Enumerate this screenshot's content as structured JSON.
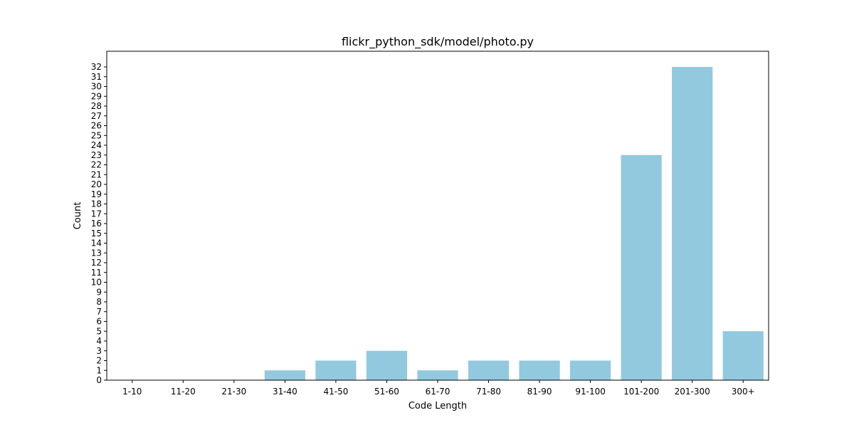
{
  "chart_data": {
    "type": "bar",
    "title": "flickr_python_sdk/model/photo.py",
    "xlabel": "Code Length",
    "ylabel": "Count",
    "categories": [
      "1-10",
      "11-20",
      "21-30",
      "31-40",
      "41-50",
      "51-60",
      "61-70",
      "71-80",
      "81-90",
      "91-100",
      "101-200",
      "201-300",
      "300+"
    ],
    "values": [
      0,
      0,
      0,
      1,
      2,
      3,
      1,
      2,
      2,
      2,
      23,
      32,
      5
    ],
    "ylim": [
      0,
      33.6
    ],
    "yticks": [
      0,
      1,
      2,
      3,
      4,
      5,
      6,
      7,
      8,
      9,
      10,
      11,
      12,
      13,
      14,
      15,
      16,
      17,
      18,
      19,
      20,
      21,
      22,
      23,
      24,
      25,
      26,
      27,
      28,
      29,
      30,
      31,
      32
    ],
    "bar_color": "#92c9df",
    "grid": false,
    "legend": "none"
  }
}
